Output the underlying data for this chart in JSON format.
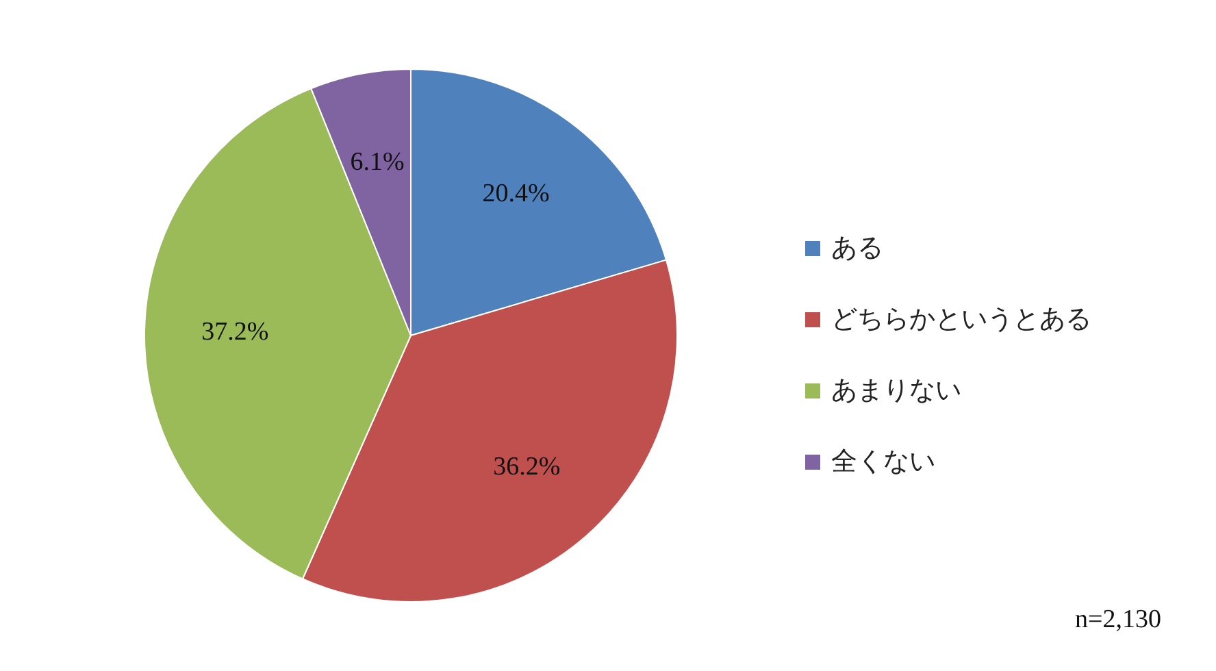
{
  "chart_data": {
    "type": "pie",
    "categories": [
      "ある",
      "どちらかというとある",
      "あまりない",
      "全くない"
    ],
    "values": [
      20.4,
      36.2,
      37.2,
      6.1
    ],
    "colors": [
      "#4f81bd",
      "#c0504d",
      "#9bbb59",
      "#8064a2"
    ],
    "value_labels": [
      "20.4%",
      "36.2%",
      "37.2%",
      "6.1%"
    ],
    "legend": "right",
    "annotations": [
      "n=2,130"
    ]
  }
}
